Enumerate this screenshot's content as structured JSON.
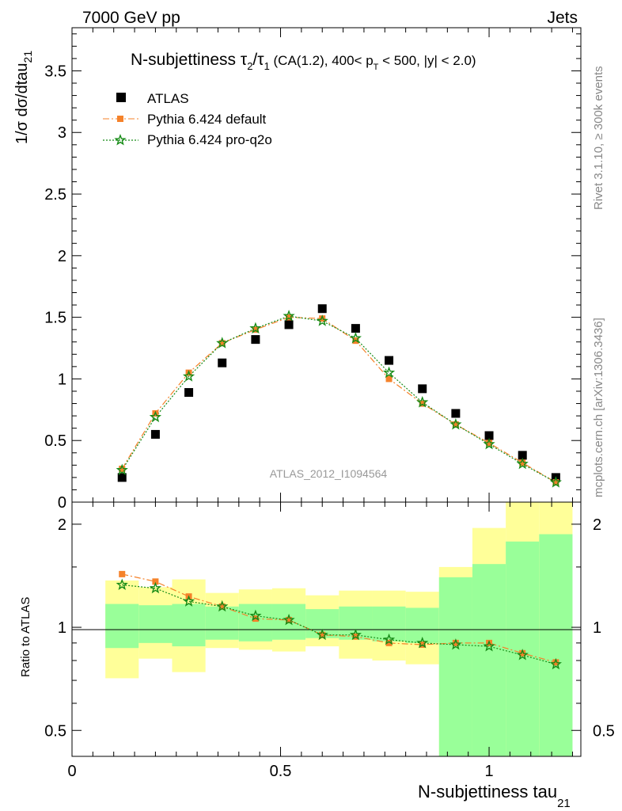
{
  "header": {
    "left": "7000 GeV pp",
    "right": "Jets"
  },
  "side": {
    "rivet": "Rivet 3.1.10, ≥ 300k events",
    "mcplots": "mcplots.cern.ch [arXiv:1306.3436]"
  },
  "chart_data": [
    {
      "type": "scatter",
      "title": {
        "main": "N-subjettiness ",
        "tau": "τ",
        "sub2": "2",
        "slash": "/",
        "sub1": "1",
        "tail1": " (CA(1.2), 400< p",
        "subT": "T",
        "tail2": " < 500, |y| < 2.0)"
      },
      "ylabel": {
        "main": "1/σ dσ/dtau",
        "sub": "21"
      },
      "xlabel": {
        "main": "N-subjettiness tau",
        "sub": "21"
      },
      "watermark": "ATLAS_2012_I1094564",
      "xlim": [
        0,
        1.22
      ],
      "ylim": [
        0,
        3.85
      ],
      "yticks": [
        "0",
        "0.5",
        "1",
        "1.5",
        "2",
        "2.5",
        "3",
        "3.5"
      ],
      "xticks": [
        "0",
        "0.5",
        "1"
      ],
      "legend_position": "top-left",
      "legend": [
        "ATLAS",
        "Pythia 6.424 default",
        "Pythia 6.424 pro-q2o"
      ],
      "x": [
        0.12,
        0.2,
        0.28,
        0.36,
        0.44,
        0.52,
        0.6,
        0.68,
        0.76,
        0.84,
        0.92,
        1.0,
        1.08,
        1.16
      ],
      "bin_edges": [
        0.08,
        0.16,
        0.24,
        0.32,
        0.4,
        0.48,
        0.56,
        0.64,
        0.72,
        0.8,
        0.88,
        0.96,
        1.04,
        1.12,
        1.2
      ],
      "series": [
        {
          "name": "ATLAS",
          "color": "#000000",
          "marker": "square",
          "values": [
            0.2,
            0.55,
            0.89,
            1.13,
            1.32,
            1.44,
            1.57,
            1.41,
            1.15,
            0.92,
            0.72,
            0.54,
            0.38,
            0.2
          ]
        },
        {
          "name": "Pythia 6.424 default",
          "color": "#f5822a",
          "marker": "square",
          "line": "dashdot",
          "values": [
            0.27,
            0.72,
            1.05,
            1.29,
            1.4,
            1.5,
            1.49,
            1.31,
            1.0,
            0.8,
            0.63,
            0.48,
            0.32,
            0.16
          ]
        },
        {
          "name": "Pythia 6.424 pro-q2o",
          "color": "#168b16",
          "marker": "star",
          "line": "dotted",
          "values": [
            0.26,
            0.69,
            1.02,
            1.29,
            1.41,
            1.51,
            1.47,
            1.33,
            1.05,
            0.81,
            0.63,
            0.47,
            0.31,
            0.16
          ]
        }
      ]
    },
    {
      "type": "scatter",
      "ylabel": "Ratio to ATLAS",
      "scale": "log",
      "ylim": [
        0.42,
        2.32
      ],
      "yticks": [
        "0.5",
        "1",
        "2"
      ],
      "xlim": [
        0,
        1.22
      ],
      "bands": {
        "green_color": "#99ff99",
        "yellow_color": "#ffff99",
        "green_lo": [
          0.87,
          0.9,
          0.88,
          0.92,
          0.91,
          0.92,
          0.93,
          0.92,
          0.91,
          0.9,
          0.35,
          0.35,
          0.35,
          0.35
        ],
        "green_hi": [
          1.17,
          1.16,
          1.17,
          1.15,
          1.17,
          1.17,
          1.13,
          1.15,
          1.15,
          1.14,
          1.4,
          1.53,
          1.78,
          1.87
        ],
        "yellow_lo": [
          0.71,
          0.81,
          0.74,
          0.87,
          0.86,
          0.85,
          0.88,
          0.81,
          0.8,
          0.78,
          0.35,
          0.35,
          0.35,
          0.35
        ],
        "yellow_hi": [
          1.37,
          1.31,
          1.38,
          1.26,
          1.29,
          1.3,
          1.24,
          1.28,
          1.28,
          1.27,
          1.5,
          1.95,
          2.32,
          2.32
        ]
      },
      "series": [
        {
          "name": "Pythia 6.424 default",
          "values": [
            1.43,
            1.36,
            1.23,
            1.15,
            1.06,
            1.05,
            0.95,
            0.94,
            0.9,
            0.89,
            0.9,
            0.9,
            0.84,
            0.79
          ]
        },
        {
          "name": "Pythia 6.424 pro-q2o",
          "values": [
            1.33,
            1.3,
            1.19,
            1.15,
            1.08,
            1.05,
            0.95,
            0.95,
            0.92,
            0.9,
            0.89,
            0.88,
            0.83,
            0.78
          ]
        }
      ]
    }
  ]
}
